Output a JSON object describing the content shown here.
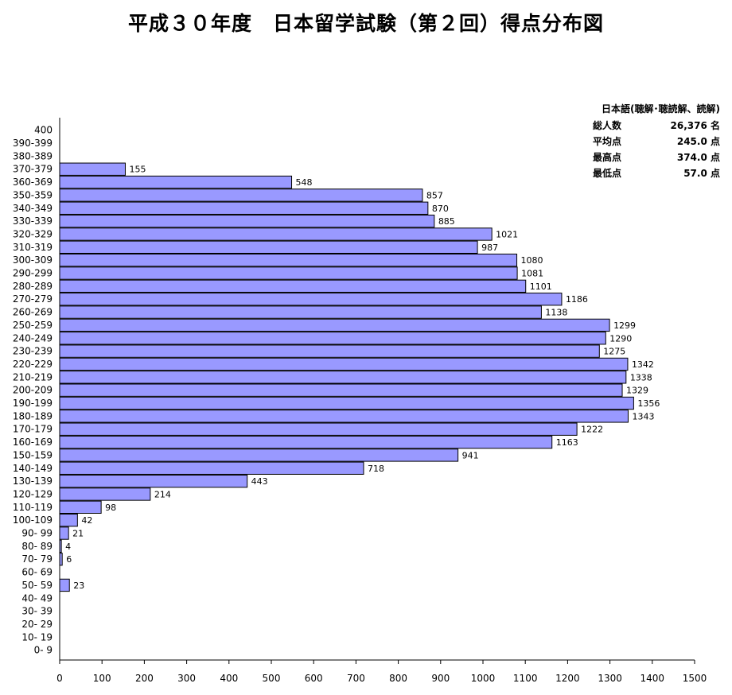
{
  "title": "平成３０年度　日本留学試験（第２回）得点分布図",
  "summary": {
    "heading": "日本語(聴解･聴読解、読解)",
    "rows": [
      {
        "label": "総人数",
        "value": "26,376 名"
      },
      {
        "label": "平均点",
        "value": "245.0 点"
      },
      {
        "label": "最高点",
        "value": "374.0 点"
      },
      {
        "label": "最低点",
        "value": "57.0 点"
      }
    ]
  },
  "chart_data": {
    "type": "bar",
    "orientation": "horizontal",
    "title": "",
    "xlabel": "",
    "ylabel": "",
    "xlim": [
      0,
      1500
    ],
    "x_ticks": [
      0,
      100,
      200,
      300,
      400,
      500,
      600,
      700,
      800,
      900,
      1000,
      1100,
      1200,
      1300,
      1400,
      1500
    ],
    "bar_color": "#9999ff",
    "categories": [
      "400",
      "390-399",
      "380-389",
      "370-379",
      "360-369",
      "350-359",
      "340-349",
      "330-339",
      "320-329",
      "310-319",
      "300-309",
      "290-299",
      "280-289",
      "270-279",
      "260-269",
      "250-259",
      "240-249",
      "230-239",
      "220-229",
      "210-219",
      "200-209",
      "190-199",
      "180-189",
      "170-179",
      "160-169",
      "150-159",
      "140-149",
      "130-139",
      "120-129",
      "110-119",
      "100-109",
      "90- 99",
      "80- 89",
      "70- 79",
      "60- 69",
      "50- 59",
      "40- 49",
      "30- 39",
      "20- 29",
      "10- 19",
      "0-  9"
    ],
    "values": [
      null,
      null,
      null,
      155,
      548,
      857,
      870,
      885,
      1021,
      987,
      1080,
      1081,
      1101,
      1186,
      1138,
      1299,
      1290,
      1275,
      1342,
      1338,
      1329,
      1356,
      1343,
      1222,
      1163,
      941,
      718,
      443,
      214,
      98,
      42,
      21,
      4,
      6,
      null,
      23,
      null,
      null,
      null,
      null,
      null
    ]
  }
}
